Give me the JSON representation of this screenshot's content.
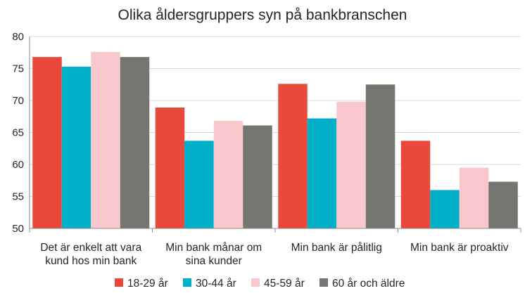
{
  "chart_data": {
    "type": "bar",
    "title": "Olika åldersgruppers syn på bankbranschen",
    "xlabel": "",
    "ylabel": "",
    "ylim": [
      50,
      80
    ],
    "yticks": [
      50,
      55,
      60,
      65,
      70,
      75,
      80
    ],
    "grid": true,
    "legend_position": "bottom",
    "categories": [
      [
        "Det är enkelt att vara",
        "kund hos min bank"
      ],
      [
        "Min bank månar om",
        "sina kunder"
      ],
      [
        "Min bank är pålitlig"
      ],
      [
        "Min bank är proaktiv"
      ]
    ],
    "series": [
      {
        "name": "18-29 år",
        "color": "#E8493A",
        "values": [
          76.8,
          68.9,
          72.6,
          63.7
        ]
      },
      {
        "name": "30-44 år",
        "color": "#00AFC8",
        "values": [
          75.3,
          63.7,
          67.2,
          56.0
        ]
      },
      {
        "name": "45-59 år",
        "color": "#F8C8CC",
        "values": [
          77.6,
          66.8,
          69.8,
          59.5
        ]
      },
      {
        "name": "60 år och äldre",
        "color": "#767670",
        "values": [
          76.8,
          66.1,
          72.5,
          57.3
        ]
      }
    ]
  }
}
